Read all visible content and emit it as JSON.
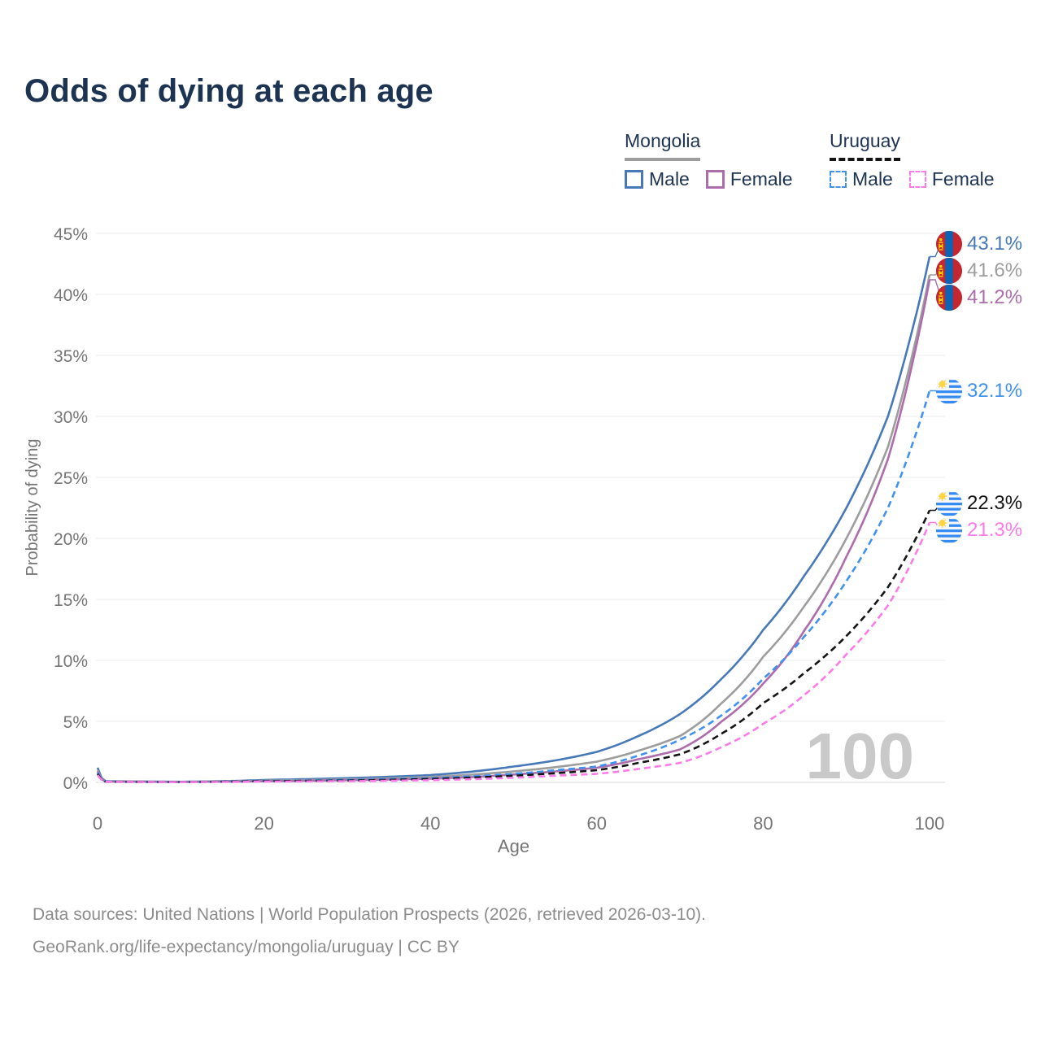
{
  "title": "Odds of dying at each age",
  "legend": {
    "groups": [
      {
        "country": "Mongolia",
        "line_style": "solid",
        "underline_color": "#9d9d9d",
        "items": [
          {
            "label": "Male",
            "color": "#4779b8",
            "dashed": false
          },
          {
            "label": "Female",
            "color": "#ad6cab",
            "dashed": false
          }
        ]
      },
      {
        "country": "Uruguay",
        "line_style": "dashed",
        "underline_color": "#141414",
        "items": [
          {
            "label": "Male",
            "color": "#4192ef",
            "dashed": true
          },
          {
            "label": "Female",
            "color": "#fb7be8",
            "dashed": true
          }
        ]
      }
    ]
  },
  "chart_data": {
    "type": "line",
    "title": "Odds of dying at each age",
    "xlabel": "Age",
    "ylabel": "Probability of dying",
    "xlim": [
      0,
      100
    ],
    "ylim": [
      0,
      45
    ],
    "x_ticks": [
      0,
      20,
      40,
      60,
      80,
      100
    ],
    "y_tick_values": [
      0,
      5,
      10,
      15,
      20,
      25,
      30,
      35,
      40,
      45
    ],
    "y_tick_labels": [
      "0%",
      "5%",
      "10%",
      "15%",
      "20%",
      "25%",
      "30%",
      "35%",
      "40%",
      "45%"
    ],
    "grid": true,
    "legend_position": "top-right",
    "watermark": "100",
    "unit": "percent",
    "control_ages": [
      0,
      1,
      10,
      20,
      30,
      40,
      50,
      55,
      60,
      65,
      70,
      75,
      80,
      85,
      90,
      95,
      100
    ],
    "series": [
      {
        "name": "Mongolia Male",
        "country": "Mongolia",
        "sex": "Male",
        "color": "#4779b8",
        "dashed": false,
        "flag": "mongolia",
        "end_label": "43.1%",
        "end_value": 43.1,
        "values": [
          1.2,
          0.1,
          0.05,
          0.2,
          0.35,
          0.6,
          1.3,
          1.8,
          2.5,
          3.8,
          5.6,
          8.5,
          12.5,
          17.0,
          22.5,
          30.0,
          43.1
        ]
      },
      {
        "name": "Mongolia Both sexes",
        "country": "Mongolia",
        "sex": "Both",
        "color": "#9d9d9d",
        "dashed": false,
        "flag": "mongolia",
        "end_label": "41.6%",
        "end_value": 41.6,
        "values": [
          1.0,
          0.08,
          0.04,
          0.15,
          0.25,
          0.45,
          0.9,
          1.25,
          1.7,
          2.6,
          3.8,
          6.5,
          10.3,
          14.5,
          20.0,
          27.5,
          41.6
        ]
      },
      {
        "name": "Mongolia Female",
        "country": "Mongolia",
        "sex": "Female",
        "color": "#ad6cab",
        "dashed": false,
        "flag": "mongolia",
        "end_label": "41.2%",
        "end_value": 41.2,
        "values": [
          0.9,
          0.07,
          0.04,
          0.1,
          0.18,
          0.3,
          0.65,
          0.9,
          1.2,
          1.9,
          2.7,
          5.0,
          8.1,
          12.5,
          18.5,
          26.5,
          41.2
        ]
      },
      {
        "name": "Uruguay Male",
        "country": "Uruguay",
        "sex": "Male",
        "color": "#4192ef",
        "dashed": true,
        "flag": "uruguay",
        "end_label": "32.1%",
        "end_value": 32.1,
        "values": [
          0.8,
          0.06,
          0.03,
          0.12,
          0.2,
          0.35,
          0.7,
          1.0,
          1.3,
          2.2,
          3.5,
          5.5,
          8.5,
          12.0,
          16.5,
          22.5,
          32.1
        ]
      },
      {
        "name": "Uruguay Both sexes",
        "country": "Uruguay",
        "sex": "Both",
        "color": "#141414",
        "dashed": true,
        "flag": "uruguay",
        "end_label": "22.3%",
        "end_value": 22.3,
        "values": [
          0.7,
          0.05,
          0.03,
          0.1,
          0.15,
          0.28,
          0.55,
          0.75,
          1.0,
          1.6,
          2.3,
          4.0,
          6.5,
          9.0,
          12.0,
          16.0,
          22.3
        ]
      },
      {
        "name": "Uruguay Female",
        "country": "Uruguay",
        "sex": "Female",
        "color": "#fb7be8",
        "dashed": true,
        "flag": "uruguay",
        "end_label": "21.3%",
        "end_value": 21.3,
        "values": [
          0.6,
          0.05,
          0.02,
          0.06,
          0.1,
          0.18,
          0.38,
          0.55,
          0.7,
          1.1,
          1.6,
          2.9,
          4.8,
          7.2,
          10.5,
          14.5,
          21.3
        ]
      }
    ]
  },
  "footer": {
    "line1": "Data sources: United Nations | World Population Prospects (2026, retrieved 2026-03-10).",
    "line2": "GeoRank.org/life-expectancy/mongolia/uruguay | CC BY"
  },
  "colors": {
    "title": "#1d3352",
    "axis_text": "#757575",
    "gridline": "#ebebeb",
    "zero_line": "#d8d8d8",
    "watermark": "#c9c9c9",
    "footer_text": "#8c8c8c"
  }
}
